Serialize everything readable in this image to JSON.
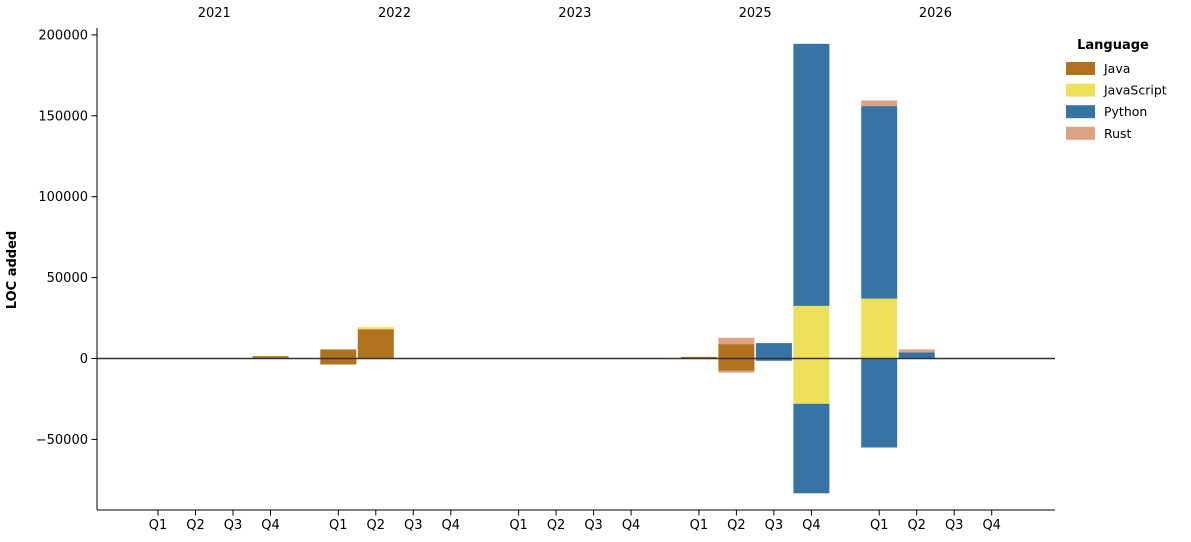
{
  "chart_data": {
    "type": "bar",
    "stacked": true,
    "title": "",
    "ylabel": "LOC added",
    "xlabel": "",
    "ylim": [
      -93600,
      204300
    ],
    "grid": false,
    "zero_line": true,
    "yticks": [
      200000,
      150000,
      100000,
      50000,
      0,
      -50000
    ],
    "year_groups": [
      "2021",
      "2022",
      "2023",
      "2025",
      "2026"
    ],
    "quarter_labels": [
      "Q1",
      "Q2",
      "Q3",
      "Q4"
    ],
    "legend": {
      "title": "Language",
      "position": "upper-right-outside",
      "entries": [
        {
          "label": "Java",
          "color": "#B0721C"
        },
        {
          "label": "JavaScript",
          "color": "#EDE15A"
        },
        {
          "label": "Python",
          "color": "#3873A5"
        },
        {
          "label": "Rust",
          "color": "#DDA184"
        }
      ]
    },
    "bars": [
      {
        "year": "2021",
        "quarter": "Q1",
        "segments": []
      },
      {
        "year": "2021",
        "quarter": "Q2",
        "segments": []
      },
      {
        "year": "2021",
        "quarter": "Q3",
        "segments": []
      },
      {
        "year": "2021",
        "quarter": "Q4",
        "segments": [
          {
            "language": "Java",
            "value": 1400
          }
        ]
      },
      {
        "year": "2022",
        "quarter": "Q1",
        "segments": [
          {
            "language": "Java",
            "value": 5600
          },
          {
            "language": "Java",
            "value": -3700
          }
        ]
      },
      {
        "year": "2022",
        "quarter": "Q2",
        "segments": [
          {
            "language": "Java",
            "value": 18100
          },
          {
            "language": "JavaScript",
            "value": 1300
          }
        ]
      },
      {
        "year": "2022",
        "quarter": "Q3",
        "segments": []
      },
      {
        "year": "2022",
        "quarter": "Q4",
        "segments": []
      },
      {
        "year": "2023",
        "quarter": "Q1",
        "segments": []
      },
      {
        "year": "2023",
        "quarter": "Q2",
        "segments": []
      },
      {
        "year": "2023",
        "quarter": "Q3",
        "segments": []
      },
      {
        "year": "2023",
        "quarter": "Q4",
        "segments": []
      },
      {
        "year": "2025",
        "quarter": "Q1",
        "segments": [
          {
            "language": "Java",
            "value": 1000
          }
        ]
      },
      {
        "year": "2025",
        "quarter": "Q2",
        "segments": [
          {
            "language": "Java",
            "value": 8900
          },
          {
            "language": "Rust",
            "value": 3900
          },
          {
            "language": "Java",
            "value": -7600
          },
          {
            "language": "Rust",
            "value": -1100
          }
        ]
      },
      {
        "year": "2025",
        "quarter": "Q3",
        "segments": [
          {
            "language": "Python",
            "value": 9500
          },
          {
            "language": "Python",
            "value": -1400
          }
        ]
      },
      {
        "year": "2025",
        "quarter": "Q4",
        "segments": [
          {
            "language": "JavaScript",
            "value": 32500
          },
          {
            "language": "Python",
            "value": 162000
          },
          {
            "language": "JavaScript",
            "value": -28000
          },
          {
            "language": "Python",
            "value": -55300
          }
        ]
      },
      {
        "year": "2026",
        "quarter": "Q1",
        "segments": [
          {
            "language": "JavaScript",
            "value": 37000
          },
          {
            "language": "Python",
            "value": 119000
          },
          {
            "language": "Rust",
            "value": 3500
          },
          {
            "language": "Python",
            "value": -55000
          }
        ]
      },
      {
        "year": "2026",
        "quarter": "Q2",
        "segments": [
          {
            "language": "Python",
            "value": 3700
          },
          {
            "language": "Rust",
            "value": 1900
          }
        ]
      },
      {
        "year": "2026",
        "quarter": "Q3",
        "segments": []
      },
      {
        "year": "2026",
        "quarter": "Q4",
        "segments": []
      }
    ]
  }
}
